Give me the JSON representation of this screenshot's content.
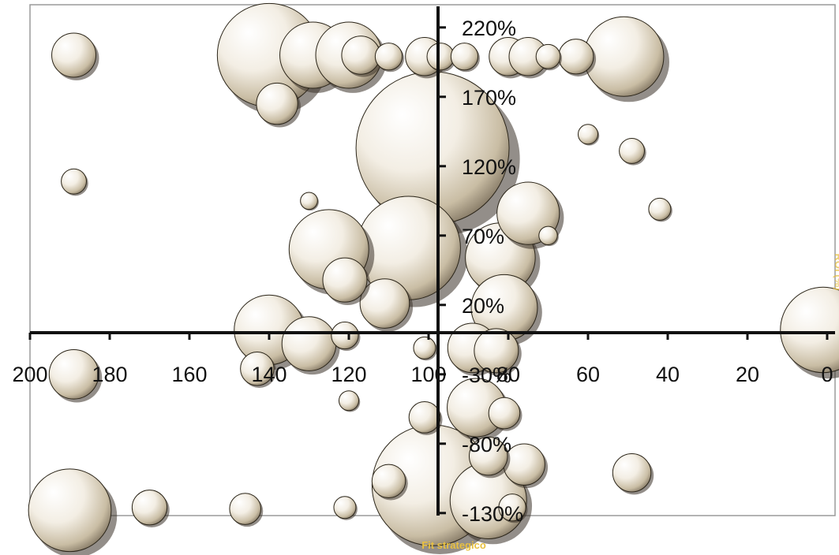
{
  "chart_data": {
    "type": "bubble",
    "xlabel": "Fit strategico",
    "ylabel": "ROI (%)",
    "x_axis": {
      "reversed": true,
      "range": [
        0,
        200
      ],
      "ticks": [
        200,
        180,
        160,
        140,
        120,
        100,
        80,
        60,
        40,
        20,
        0
      ]
    },
    "y_axis": {
      "range": [
        -130,
        220
      ],
      "ticks": [
        220,
        170,
        120,
        70,
        20,
        -30,
        -80,
        -130
      ],
      "tick_suffix": "%"
    },
    "grid": false,
    "legend": "none",
    "colors": {
      "bubble_light": "#ffffff",
      "bubble_mid": "#ece4d4",
      "bubble_dark": "#8a7a60",
      "axis": "#111111",
      "axis_title": "#e8c040",
      "frame": "#999999"
    },
    "points": [
      {
        "x": 189,
        "y": 200,
        "size": 4
      },
      {
        "x": 140,
        "y": 200,
        "size": 22
      },
      {
        "x": 129,
        "y": 200,
        "size": 9
      },
      {
        "x": 120,
        "y": 200,
        "size": 9
      },
      {
        "x": 117,
        "y": 200,
        "size": 3
      },
      {
        "x": 110,
        "y": 199,
        "size": 1.5
      },
      {
        "x": 101,
        "y": 199,
        "size": 3
      },
      {
        "x": 97,
        "y": 199,
        "size": 1.5
      },
      {
        "x": 91,
        "y": 199,
        "size": 1.5
      },
      {
        "x": 80,
        "y": 199,
        "size": 3
      },
      {
        "x": 75,
        "y": 199,
        "size": 3
      },
      {
        "x": 70,
        "y": 199,
        "size": 1.2
      },
      {
        "x": 63,
        "y": 199,
        "size": 2.5
      },
      {
        "x": 51,
        "y": 199,
        "size": 13
      },
      {
        "x": 138,
        "y": 165,
        "size": 3.5
      },
      {
        "x": 99,
        "y": 133,
        "size": 48
      },
      {
        "x": 60,
        "y": 143,
        "size": 0.8
      },
      {
        "x": 49,
        "y": 131,
        "size": 1.3
      },
      {
        "x": 189,
        "y": 109,
        "size": 1.3
      },
      {
        "x": 130,
        "y": 95,
        "size": 0.6
      },
      {
        "x": 42,
        "y": 89,
        "size": 1
      },
      {
        "x": 75,
        "y": 86,
        "size": 8
      },
      {
        "x": 70,
        "y": 70,
        "size": 0.7
      },
      {
        "x": 125,
        "y": 60,
        "size": 13
      },
      {
        "x": 105,
        "y": 61,
        "size": 22
      },
      {
        "x": 82,
        "y": 54,
        "size": 10
      },
      {
        "x": 121,
        "y": 38,
        "size": 4
      },
      {
        "x": 111,
        "y": 21,
        "size": 5
      },
      {
        "x": 81,
        "y": 18,
        "size": 9
      },
      {
        "x": 140,
        "y": 2,
        "size": 10
      },
      {
        "x": 130,
        "y": -8,
        "size": 6
      },
      {
        "x": 121,
        "y": -2,
        "size": 1.5
      },
      {
        "x": 101,
        "y": -11,
        "size": 1
      },
      {
        "x": 89,
        "y": -11,
        "size": 5
      },
      {
        "x": 83,
        "y": -13,
        "size": 4
      },
      {
        "x": 143,
        "y": -26,
        "size": 2.3
      },
      {
        "x": 189,
        "y": -30,
        "size": 5
      },
      {
        "x": 120,
        "y": -49,
        "size": 0.8
      },
      {
        "x": 88,
        "y": -54,
        "size": 7
      },
      {
        "x": 81,
        "y": -58,
        "size": 2
      },
      {
        "x": 101,
        "y": -61,
        "size": 2
      },
      {
        "x": 85,
        "y": -89,
        "size": 3
      },
      {
        "x": 76,
        "y": -95,
        "size": 3.5
      },
      {
        "x": 110,
        "y": -107,
        "size": 2.3
      },
      {
        "x": 99,
        "y": -110,
        "size": 30
      },
      {
        "x": 85,
        "y": -121,
        "size": 12
      },
      {
        "x": 79,
        "y": -126,
        "size": 1.5
      },
      {
        "x": 190,
        "y": -128,
        "size": 14
      },
      {
        "x": 170,
        "y": -126,
        "size": 2.5
      },
      {
        "x": 146,
        "y": -127,
        "size": 2
      },
      {
        "x": 121,
        "y": -126,
        "size": 1
      },
      {
        "x": 49,
        "y": -101,
        "size": 3
      },
      {
        "x": 1,
        "y": 2,
        "size": 15
      }
    ]
  }
}
